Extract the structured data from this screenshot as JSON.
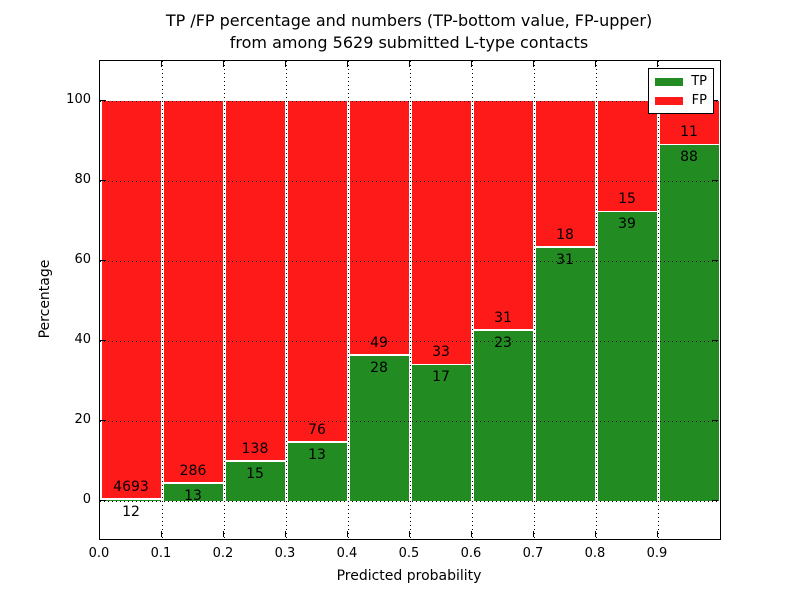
{
  "chart_data": {
    "type": "bar",
    "stacked": true,
    "title_line1": "TP /FP percentage and numbers (TP-bottom value, FP-upper)",
    "title_line2": "from among 5629 submitted L-type contacts",
    "xlabel": "Predicted probability",
    "ylabel": "Percentage",
    "x_tick_labels": [
      "0.0",
      "0.1",
      "0.2",
      "0.3",
      "0.4",
      "0.5",
      "0.6",
      "0.7",
      "0.8",
      "0.9"
    ],
    "y_tick_labels": [
      "0",
      "20",
      "40",
      "60",
      "80",
      "100"
    ],
    "y_tick_values": [
      0,
      20,
      40,
      60,
      80,
      100
    ],
    "xlim": [
      0.0,
      1.0
    ],
    "ylim": [
      -10,
      110
    ],
    "grid": "dotted",
    "bin_width": 0.1,
    "categories": [
      "0.0-0.1",
      "0.1-0.2",
      "0.2-0.3",
      "0.3-0.4",
      "0.4-0.5",
      "0.5-0.6",
      "0.6-0.7",
      "0.7-0.8",
      "0.8-0.9",
      "0.9-1.0"
    ],
    "series": [
      {
        "name": "TP",
        "color": "#228B22",
        "values": [
          12,
          13,
          15,
          13,
          28,
          17,
          23,
          31,
          39,
          88
        ]
      },
      {
        "name": "FP",
        "color": "#FF1A1A",
        "values": [
          4693,
          286,
          138,
          76,
          49,
          33,
          31,
          18,
          15,
          11
        ]
      }
    ],
    "bins": [
      {
        "x0": 0.0,
        "x1": 0.1,
        "tp": 12,
        "fp": 4693
      },
      {
        "x0": 0.1,
        "x1": 0.2,
        "tp": 13,
        "fp": 286
      },
      {
        "x0": 0.2,
        "x1": 0.3,
        "tp": 15,
        "fp": 138
      },
      {
        "x0": 0.3,
        "x1": 0.4,
        "tp": 13,
        "fp": 76
      },
      {
        "x0": 0.4,
        "x1": 0.5,
        "tp": 28,
        "fp": 49
      },
      {
        "x0": 0.5,
        "x1": 0.6,
        "tp": 17,
        "fp": 33
      },
      {
        "x0": 0.6,
        "x1": 0.7,
        "tp": 23,
        "fp": 31
      },
      {
        "x0": 0.7,
        "x1": 0.8,
        "tp": 31,
        "fp": 18
      },
      {
        "x0": 0.8,
        "x1": 0.9,
        "tp": 39,
        "fp": 15
      },
      {
        "x0": 0.9,
        "x1": 1.0,
        "tp": 88,
        "fp": 11
      }
    ],
    "legend": {
      "position": "upper right",
      "entries": [
        {
          "label": "TP",
          "color": "#228B22"
        },
        {
          "label": "FP",
          "color": "#FF1A1A"
        }
      ]
    }
  }
}
